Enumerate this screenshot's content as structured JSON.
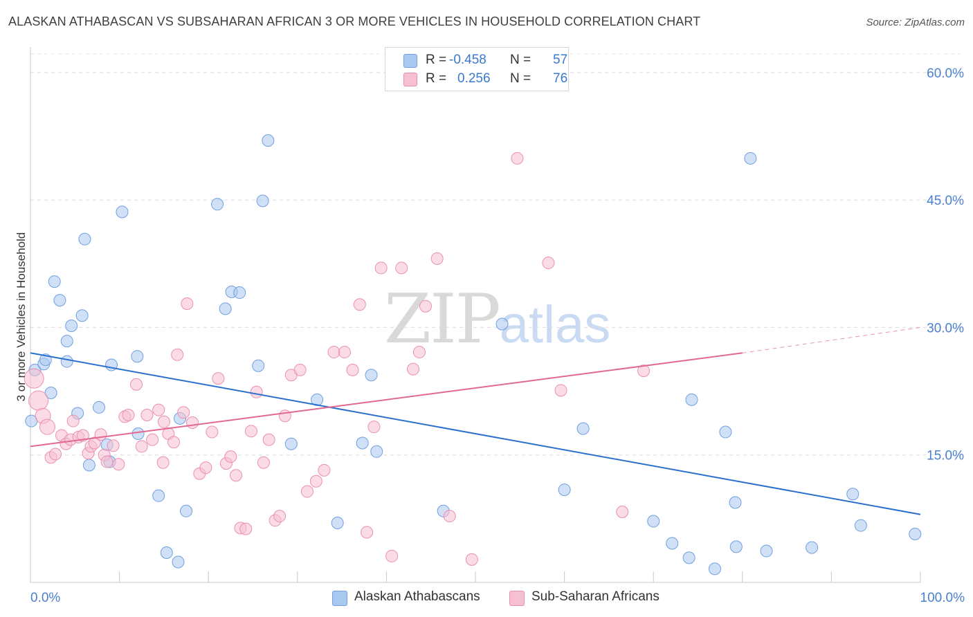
{
  "title": "ALASKAN ATHABASCAN VS SUBSAHARAN AFRICAN 3 OR MORE VEHICLES IN HOUSEHOLD CORRELATION CHART",
  "source": "Source: ZipAtlas.com",
  "watermark": {
    "zip": "ZIP",
    "atlas": "atlas"
  },
  "legend": {
    "rows": [
      {
        "r_label": "R =",
        "r_value": "-0.458",
        "n_label": "N =",
        "n_value": "57",
        "color": "#a9c8f0",
        "border": "#6f9fe0"
      },
      {
        "r_label": "R =",
        "r_value": "0.256",
        "n_label": "N =",
        "n_value": "76",
        "color": "#f7bfd2",
        "border": "#ea8fb0"
      }
    ]
  },
  "bottom_legend": [
    {
      "label": "Alaskan Athabascans",
      "color": "#a9c8f0",
      "border": "#6f9fe0"
    },
    {
      "label": "Sub-Saharan Africans",
      "color": "#f7bfd2",
      "border": "#ea8fb0"
    }
  ],
  "chart_data": {
    "type": "scatter",
    "title": "ALASKAN ATHABASCAN VS SUBSAHARAN AFRICAN 3 OR MORE VEHICLES IN HOUSEHOLD CORRELATION CHART",
    "xlabel": "",
    "ylabel": "3 or more Vehicles in Household",
    "xlim": [
      0,
      100
    ],
    "ylim": [
      0,
      63
    ],
    "x_ticks": [
      0,
      10,
      20,
      30,
      40,
      50,
      60,
      70,
      80,
      90,
      100
    ],
    "x_tick_labels": [
      {
        "value": 0,
        "label": "0.0%"
      },
      {
        "value": 100,
        "label": "100.0%"
      }
    ],
    "y_ticks": [
      {
        "value": 15,
        "label": "15.0%"
      },
      {
        "value": 30,
        "label": "30.0%"
      },
      {
        "value": 45,
        "label": "45.0%"
      },
      {
        "value": 60,
        "label": "60.0%"
      }
    ],
    "grid": true,
    "legend_position": "top-center",
    "series": [
      {
        "name": "Alaskan Athabascans",
        "color": "#a9c8f0",
        "edge": "#6f9fe0",
        "line_color": "#2a6fce",
        "trend": {
          "x": [
            0,
            100
          ],
          "y": [
            27.0,
            8.0
          ]
        },
        "points": [
          [
            0.1,
            19.0
          ],
          [
            0.5,
            25.0
          ],
          [
            1.5,
            25.7
          ],
          [
            1.7,
            26.2
          ],
          [
            2.3,
            22.3
          ],
          [
            2.7,
            35.4
          ],
          [
            3.3,
            33.2
          ],
          [
            4.1,
            28.4
          ],
          [
            4.1,
            26.0
          ],
          [
            4.6,
            30.2
          ],
          [
            5.3,
            19.9
          ],
          [
            5.8,
            31.4
          ],
          [
            6.1,
            40.4
          ],
          [
            6.6,
            13.8
          ],
          [
            7.7,
            20.6
          ],
          [
            8.6,
            16.2
          ],
          [
            8.9,
            14.2
          ],
          [
            9.1,
            25.6
          ],
          [
            10.3,
            43.6
          ],
          [
            12.0,
            26.6
          ],
          [
            12.1,
            17.5
          ],
          [
            14.4,
            10.2
          ],
          [
            15.3,
            3.5
          ],
          [
            16.6,
            2.4
          ],
          [
            16.8,
            19.3
          ],
          [
            17.5,
            8.4
          ],
          [
            21.0,
            44.5
          ],
          [
            21.9,
            32.2
          ],
          [
            22.6,
            34.2
          ],
          [
            23.5,
            34.1
          ],
          [
            25.6,
            25.5
          ],
          [
            26.1,
            44.9
          ],
          [
            26.7,
            52.0
          ],
          [
            29.3,
            16.3
          ],
          [
            32.2,
            21.5
          ],
          [
            34.5,
            7.0
          ],
          [
            37.3,
            16.4
          ],
          [
            38.3,
            24.4
          ],
          [
            38.9,
            15.4
          ],
          [
            46.4,
            8.4
          ],
          [
            53.0,
            30.4
          ],
          [
            60.0,
            10.9
          ],
          [
            62.1,
            18.1
          ],
          [
            70.0,
            7.2
          ],
          [
            72.1,
            4.6
          ],
          [
            74.0,
            2.9
          ],
          [
            74.3,
            21.5
          ],
          [
            76.9,
            1.6
          ],
          [
            78.1,
            17.7
          ],
          [
            79.2,
            9.4
          ],
          [
            79.3,
            4.2
          ],
          [
            80.9,
            49.9
          ],
          [
            82.7,
            3.7
          ],
          [
            87.8,
            4.1
          ],
          [
            92.4,
            10.4
          ],
          [
            93.3,
            6.7
          ],
          [
            99.4,
            5.7
          ]
        ]
      },
      {
        "name": "Sub-Saharan Africans",
        "color": "#f7bfd2",
        "edge": "#ea8fb0",
        "line_color": "#e26792",
        "trend": {
          "x": [
            0,
            80
          ],
          "y": [
            16.0,
            27.0
          ]
        },
        "trend_dashed": {
          "x": [
            80,
            100
          ],
          "y": [
            27.0,
            30.0
          ]
        },
        "points": [
          [
            0.4,
            24.0
          ],
          [
            0.9,
            21.4
          ],
          [
            1.4,
            19.6
          ],
          [
            1.9,
            18.3
          ],
          [
            2.3,
            14.7
          ],
          [
            2.8,
            15.1
          ],
          [
            3.5,
            17.3
          ],
          [
            4.0,
            16.3
          ],
          [
            4.5,
            16.8
          ],
          [
            4.8,
            19.0
          ],
          [
            5.4,
            17.1
          ],
          [
            5.9,
            17.3
          ],
          [
            6.5,
            15.2
          ],
          [
            6.8,
            16.0
          ],
          [
            7.2,
            16.4
          ],
          [
            7.9,
            17.4
          ],
          [
            8.3,
            15.0
          ],
          [
            8.6,
            14.2
          ],
          [
            9.3,
            16.1
          ],
          [
            9.9,
            13.9
          ],
          [
            10.6,
            19.5
          ],
          [
            11.0,
            19.7
          ],
          [
            11.9,
            23.3
          ],
          [
            12.5,
            16.0
          ],
          [
            13.1,
            19.7
          ],
          [
            13.7,
            16.8
          ],
          [
            14.4,
            20.3
          ],
          [
            14.9,
            14.1
          ],
          [
            15.0,
            18.9
          ],
          [
            15.5,
            17.5
          ],
          [
            16.1,
            16.5
          ],
          [
            16.5,
            26.8
          ],
          [
            17.2,
            20.0
          ],
          [
            17.6,
            32.8
          ],
          [
            18.2,
            18.8
          ],
          [
            19.0,
            12.8
          ],
          [
            19.7,
            13.5
          ],
          [
            20.4,
            17.7
          ],
          [
            21.1,
            24.0
          ],
          [
            22.0,
            14.0
          ],
          [
            22.5,
            14.8
          ],
          [
            23.1,
            12.6
          ],
          [
            23.6,
            6.4
          ],
          [
            24.2,
            6.3
          ],
          [
            24.8,
            17.8
          ],
          [
            25.4,
            22.4
          ],
          [
            26.2,
            14.1
          ],
          [
            26.8,
            16.8
          ],
          [
            27.5,
            7.3
          ],
          [
            28.0,
            7.8
          ],
          [
            28.6,
            19.6
          ],
          [
            29.3,
            24.4
          ],
          [
            30.3,
            25.0
          ],
          [
            31.1,
            10.7
          ],
          [
            32.1,
            11.9
          ],
          [
            33.0,
            13.2
          ],
          [
            34.1,
            27.1
          ],
          [
            35.3,
            27.1
          ],
          [
            36.2,
            25.0
          ],
          [
            37.0,
            32.7
          ],
          [
            37.8,
            5.9
          ],
          [
            38.6,
            18.3
          ],
          [
            39.4,
            37.0
          ],
          [
            40.6,
            3.1
          ],
          [
            41.7,
            37.0
          ],
          [
            43.0,
            25.1
          ],
          [
            43.7,
            27.1
          ],
          [
            44.4,
            32.5
          ],
          [
            45.7,
            38.1
          ],
          [
            47.1,
            7.8
          ],
          [
            49.6,
            2.7
          ],
          [
            54.7,
            49.9
          ],
          [
            58.2,
            37.6
          ],
          [
            59.6,
            22.6
          ],
          [
            66.5,
            8.3
          ],
          [
            68.9,
            24.9
          ]
        ]
      }
    ]
  }
}
